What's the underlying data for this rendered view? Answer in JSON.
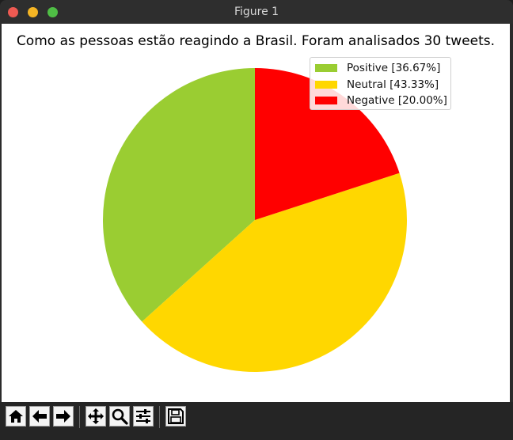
{
  "window": {
    "title": "Figure 1"
  },
  "chart_data": {
    "type": "pie",
    "title": "Como as pessoas estão reagindo a Brasil.  Foram analisados 30 tweets.",
    "slices": [
      {
        "label": "Positive [36.67%]",
        "value": 36.67,
        "color": "#9acd32"
      },
      {
        "label": "Neutral [43.33%]",
        "value": 43.33,
        "color": "#ffd700"
      },
      {
        "label": "Negative [20.00%]",
        "value": 20.0,
        "color": "#ff0000"
      }
    ],
    "start_angle_deg": 90,
    "direction": "counterclockwise",
    "legend_location": "top-right"
  },
  "toolbar": {
    "buttons": [
      {
        "name": "home-button",
        "icon": "home-icon"
      },
      {
        "name": "back-button",
        "icon": "arrow-left-icon"
      },
      {
        "name": "forward-button",
        "icon": "arrow-right-icon"
      },
      {
        "name": "pan-button",
        "icon": "move-icon"
      },
      {
        "name": "zoom-button",
        "icon": "magnifier-icon"
      },
      {
        "name": "configure-subplots-button",
        "icon": "sliders-icon"
      },
      {
        "name": "save-button",
        "icon": "floppy-disk-icon"
      }
    ]
  }
}
